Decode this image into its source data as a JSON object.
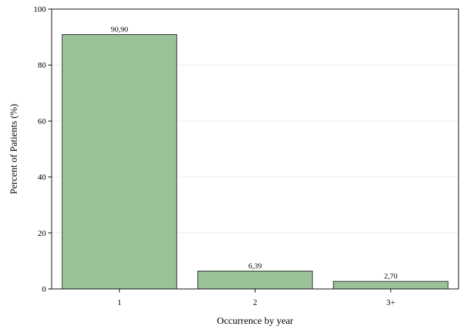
{
  "chart_data": {
    "type": "bar",
    "categories": [
      "1",
      "2",
      "3+"
    ],
    "values": [
      90.9,
      6.39,
      2.7
    ],
    "data_labels": [
      "90,90",
      "6,39",
      "2,70"
    ],
    "title": "",
    "xlabel": "Occurrence by year",
    "ylabel": "Percent of Patients (%)",
    "ylim": [
      0,
      100
    ],
    "yticks": [
      0,
      20,
      40,
      60,
      80,
      100
    ],
    "grid": true,
    "legend": "none"
  },
  "colors": {
    "bar_fill": "#99c298",
    "bar_stroke": "#2b2b2b",
    "axis": "#000000",
    "grid": "#e9e9e9",
    "background": "#ffffff"
  }
}
